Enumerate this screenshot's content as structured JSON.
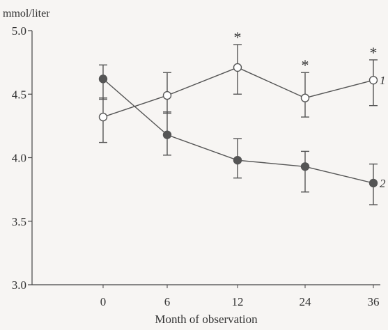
{
  "chart_data": {
    "type": "line",
    "title": "",
    "xlabel": "Month of observation",
    "ylabel": "mmol/liter",
    "x": [
      "0",
      "6",
      "12",
      "24",
      "36"
    ],
    "ylim": [
      3.0,
      5.0
    ],
    "yticks": [
      "3.0",
      "3.5",
      "4.0",
      "4.5",
      "5.0"
    ],
    "grid": false,
    "series": [
      {
        "name": "1",
        "marker": "open-circle",
        "values": [
          4.32,
          4.49,
          4.71,
          4.47,
          4.61
        ],
        "err_low": [
          4.12,
          4.35,
          4.5,
          4.32,
          4.41
        ],
        "err_high": [
          4.47,
          4.67,
          4.89,
          4.67,
          4.77
        ]
      },
      {
        "name": "2",
        "marker": "filled-circle",
        "values": [
          4.62,
          4.18,
          3.98,
          3.93,
          3.8
        ],
        "err_low": [
          4.46,
          4.02,
          3.84,
          3.73,
          3.63
        ],
        "err_high": [
          4.73,
          4.36,
          4.15,
          4.05,
          3.95
        ]
      }
    ],
    "significance": {
      "mark": "*",
      "points": [
        "12",
        "24",
        "36"
      ]
    },
    "colors": {
      "line": "#555555",
      "filled_marker": "#555555",
      "open_marker_fill": "#ffffff"
    }
  }
}
